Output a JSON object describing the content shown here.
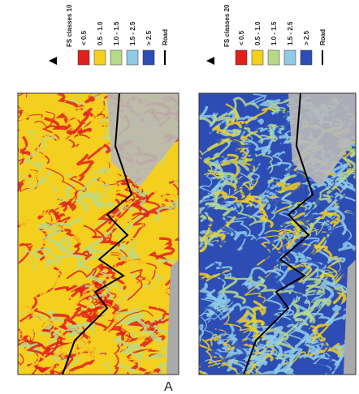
{
  "panels": [
    {
      "legend": {
        "title": "FS classes 10",
        "road": "Road",
        "items": [
          {
            "label": "< 0.5",
            "color": "#e0201b"
          },
          {
            "label": "0.5 - 1.0",
            "color": "#f4cf1e"
          },
          {
            "label": "1.0 - 1.5",
            "color": "#b9d98a"
          },
          {
            "label": "1.5 - 2.5",
            "color": "#8fcbe6"
          },
          {
            "label": "> 2.5",
            "color": "#2d4db5"
          }
        ]
      },
      "label": "A"
    },
    {
      "legend": {
        "title": "FS classes 20",
        "road": "Road",
        "items": [
          {
            "label": "< 0.5",
            "color": "#e0201b"
          },
          {
            "label": "0.5 - 1.0",
            "color": "#f4cf1e"
          },
          {
            "label": "1.0 - 1.5",
            "color": "#b9d98a"
          },
          {
            "label": "1.5 - 2.5",
            "color": "#8fcbe6"
          },
          {
            "label": "> 2.5",
            "color": "#2d4db5"
          }
        ]
      }
    }
  ]
}
